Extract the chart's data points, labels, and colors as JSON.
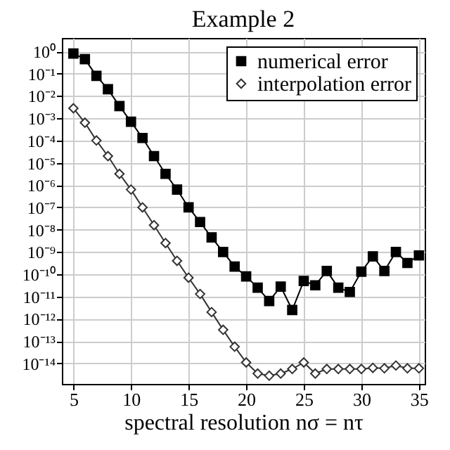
{
  "chart_data": {
    "type": "line",
    "title": "Example 2",
    "xlabel": "spectral resolution nσ = nτ",
    "x": [
      5,
      6,
      7,
      8,
      9,
      10,
      11,
      12,
      13,
      14,
      15,
      16,
      17,
      18,
      19,
      20,
      21,
      22,
      23,
      24,
      25,
      26,
      27,
      28,
      29,
      30,
      31,
      32,
      33,
      34,
      35
    ],
    "series": [
      {
        "name": "numerical error",
        "color": "#000000",
        "marker": "square",
        "values": [
          0.8,
          0.45,
          0.08,
          0.02,
          0.0035,
          0.0007,
          0.00013,
          2e-05,
          3.2e-06,
          6.3e-07,
          1e-07,
          2.2e-08,
          4.5e-09,
          1e-09,
          2.2e-10,
          8e-11,
          2.5e-11,
          6.3e-12,
          2.8e-11,
          2.5e-12,
          5e-11,
          3.2e-11,
          1.4e-10,
          2.5e-11,
          1.6e-11,
          1.3e-10,
          6.3e-10,
          1.4e-10,
          1e-09,
          3.2e-10,
          7e-10
        ]
      },
      {
        "name": "interpolation error",
        "color": "#333333",
        "marker": "diamond",
        "values": [
          0.0028,
          0.00063,
          0.0001,
          2e-05,
          3.2e-06,
          6.3e-07,
          1e-07,
          1.6e-08,
          2.5e-09,
          4e-10,
          7e-11,
          1.3e-11,
          2e-12,
          3.2e-13,
          5.6e-14,
          1.1e-14,
          3.5e-15,
          2.8e-15,
          3.5e-15,
          5.6e-15,
          1.1e-14,
          3.5e-15,
          5.6e-15,
          5.6e-15,
          5.6e-15,
          5.6e-15,
          6.3e-15,
          6e-15,
          8e-15,
          6e-15,
          6e-15
        ]
      }
    ],
    "log": true,
    "xlim": [
      4,
      35.5
    ],
    "xticks": [
      5,
      10,
      15,
      20,
      25,
      30,
      35
    ],
    "ylim": [
      1.2e-15,
      4
    ],
    "yticks": [
      {
        "value": 1,
        "label": "10⁰"
      },
      {
        "value": 0.1,
        "label": "10⁻¹"
      },
      {
        "value": 0.01,
        "label": "10⁻²"
      },
      {
        "value": 0.001,
        "label": "10⁻³"
      },
      {
        "value": 0.0001,
        "label": "10⁻⁴"
      },
      {
        "value": 1e-05,
        "label": "10⁻⁵"
      },
      {
        "value": 1e-06,
        "label": "10⁻⁶"
      },
      {
        "value": 1e-07,
        "label": "10⁻⁷"
      },
      {
        "value": 1e-08,
        "label": "10⁻⁸"
      },
      {
        "value": 1e-09,
        "label": "10⁻⁹"
      },
      {
        "value": 1e-10,
        "label": "10⁻¹⁰"
      },
      {
        "value": 1e-11,
        "label": "10⁻¹¹"
      },
      {
        "value": 1e-12,
        "label": "10⁻¹²"
      },
      {
        "value": 1e-13,
        "label": "10⁻¹³"
      },
      {
        "value": 1e-14,
        "label": "10⁻¹⁴"
      }
    ],
    "grid": true,
    "legend": "top right",
    "line_style": "solid"
  }
}
